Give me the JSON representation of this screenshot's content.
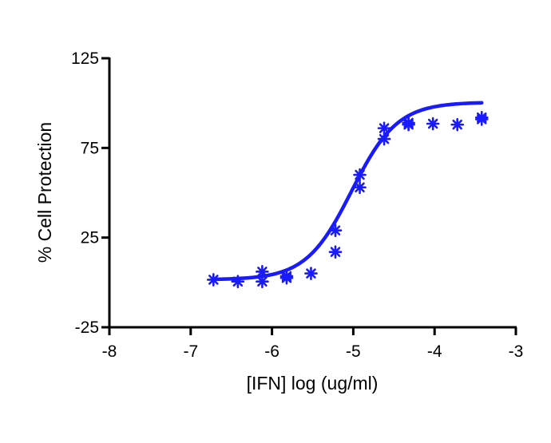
{
  "chart_data": {
    "type": "scatter",
    "xlabel": "[IFN] log (ug/ml)",
    "ylabel": "% Cell Protection",
    "xlim": [
      -8,
      -3
    ],
    "ylim": [
      -25,
      125
    ],
    "x_ticks": [
      -8,
      -7,
      -6,
      -5,
      -4,
      -3
    ],
    "y_ticks": [
      -25,
      25,
      75,
      125
    ],
    "grid": false,
    "legend": "none",
    "color": "#1a1aff",
    "marker": "asterisk",
    "series": [
      {
        "points": [
          {
            "x": -6.72,
            "y": 1.5
          },
          {
            "x": -6.42,
            "y": 0.5
          },
          {
            "x": -6.12,
            "y": 0.5
          },
          {
            "x": -6.12,
            "y": 6.0
          },
          {
            "x": -5.82,
            "y": 2.5
          },
          {
            "x": -5.82,
            "y": 3.5
          },
          {
            "x": -5.52,
            "y": 5.0
          },
          {
            "x": -5.22,
            "y": 17.0
          },
          {
            "x": -5.22,
            "y": 29.0
          },
          {
            "x": -4.92,
            "y": 53.0
          },
          {
            "x": -4.92,
            "y": 60.0
          },
          {
            "x": -4.62,
            "y": 80.0
          },
          {
            "x": -4.62,
            "y": 86.0
          },
          {
            "x": -4.32,
            "y": 88.0
          },
          {
            "x": -4.32,
            "y": 89.0
          },
          {
            "x": -4.02,
            "y": 88.5
          },
          {
            "x": -3.72,
            "y": 88.0
          },
          {
            "x": -3.42,
            "y": 91.0
          },
          {
            "x": -3.42,
            "y": 92.0
          }
        ],
        "fit": {
          "model": "four-parameter logistic",
          "bottom": 1.5,
          "top": 100.5,
          "log_ec50": -5.02,
          "hill_slope": 1.55,
          "x_range": [
            -6.72,
            -3.42
          ]
        }
      }
    ]
  }
}
